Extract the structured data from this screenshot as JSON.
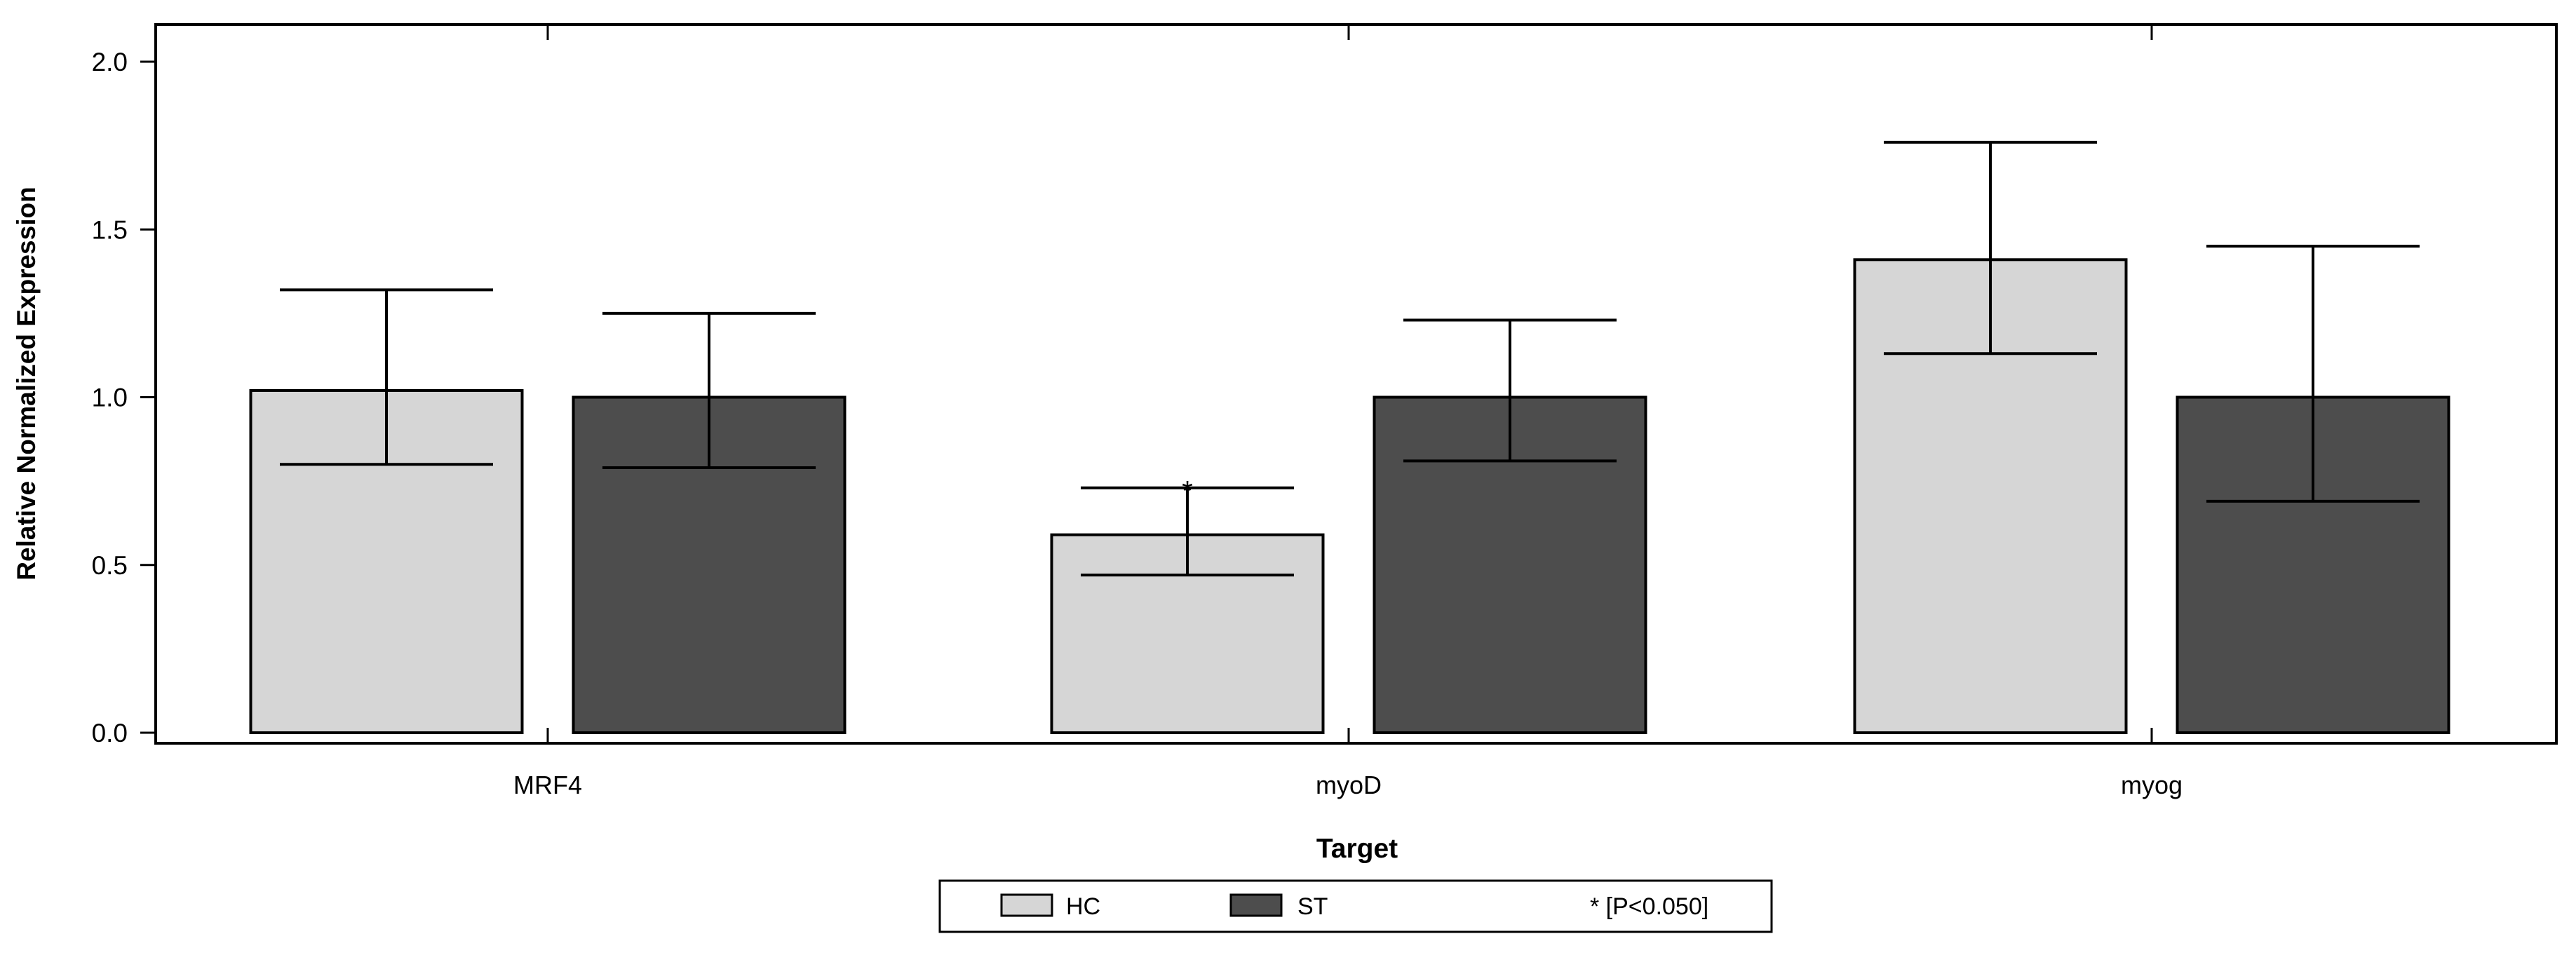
{
  "chart_data": {
    "type": "bar",
    "title": "",
    "xlabel": "Target",
    "ylabel": "Relative Normalized Expression",
    "categories": [
      "MRF4",
      "myoD",
      "myog"
    ],
    "ylim": [
      0.0,
      2.1
    ],
    "yticks": [
      "0.0",
      "0.5",
      "1.0",
      "1.5",
      "2.0"
    ],
    "ytick_values": [
      0.0,
      0.5,
      1.0,
      1.5,
      2.0
    ],
    "grid": false,
    "legend_position": "bottom-center",
    "series": [
      {
        "name": "HC",
        "color": "#d6d6d6",
        "values": [
          1.02,
          0.59,
          1.41
        ],
        "error_upper": [
          1.32,
          0.73,
          1.76
        ],
        "error_lower": [
          0.8,
          0.47,
          1.13
        ],
        "significance": [
          "",
          "*",
          ""
        ]
      },
      {
        "name": "ST",
        "color": "#4d4d4d",
        "values": [
          1.0,
          1.0,
          1.0
        ],
        "error_upper": [
          1.25,
          1.23,
          1.45
        ],
        "error_lower": [
          0.79,
          0.81,
          0.69
        ],
        "significance": [
          "",
          "",
          ""
        ]
      }
    ],
    "legend_note": "* [P<0.050]"
  }
}
